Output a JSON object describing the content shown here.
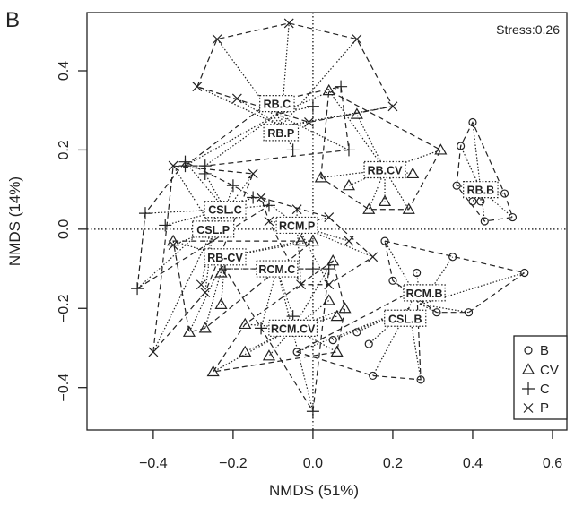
{
  "panel_label": "B",
  "chart_data": {
    "type": "scatter",
    "title": "",
    "xlabel": "NMDS (51%)",
    "ylabel": "NMDS (14%)",
    "xlim": [
      -0.566,
      0.636
    ],
    "ylim": [
      -0.507,
      0.547
    ],
    "xticks": [
      "-0.4",
      "-0.2",
      "0.0",
      "0.2",
      "0.4",
      "0.6"
    ],
    "yticks": [
      "0.4",
      "0.2",
      "0.0",
      "-0.2",
      "-0.4"
    ],
    "grid": false,
    "reference_lines": {
      "x": 0,
      "y": 0,
      "style": "dotted"
    },
    "annotation": "Stress:0.26",
    "legend": {
      "placement": "bottom-right",
      "entries": [
        {
          "label": "B",
          "marker": "circle"
        },
        {
          "label": "CV",
          "marker": "triangle"
        },
        {
          "label": "C",
          "marker": "plus"
        },
        {
          "label": "P",
          "marker": "cross"
        }
      ]
    },
    "groups": [
      {
        "label": "RB.C",
        "marker": "plus",
        "centroid": [
          -0.09,
          0.29
        ],
        "points": [
          [
            -0.11,
            0.32
          ],
          [
            -0.08,
            0.32
          ],
          [
            0.0,
            0.31
          ],
          [
            0.07,
            0.36
          ],
          [
            0.09,
            0.2
          ],
          [
            -0.05,
            0.2
          ],
          [
            -0.32,
            0.16
          ],
          [
            -0.27,
            0.16
          ]
        ]
      },
      {
        "label": "RB.P",
        "marker": "cross",
        "centroid": [
          -0.08,
          0.26
        ],
        "points": [
          [
            -0.24,
            0.48
          ],
          [
            -0.06,
            0.52
          ],
          [
            0.11,
            0.48
          ],
          [
            -0.29,
            0.36
          ],
          [
            0.2,
            0.31
          ],
          [
            -0.01,
            0.27
          ],
          [
            -0.19,
            0.33
          ]
        ]
      },
      {
        "label": "RB.CV",
        "marker": "triangle",
        "centroid": [
          0.18,
          0.15
        ],
        "points": [
          [
            0.04,
            0.35
          ],
          [
            0.11,
            0.29
          ],
          [
            0.32,
            0.2
          ],
          [
            0.25,
            0.14
          ],
          [
            0.09,
            0.11
          ],
          [
            0.02,
            0.13
          ],
          [
            0.18,
            0.07
          ],
          [
            0.14,
            0.05
          ],
          [
            0.24,
            0.05
          ]
        ]
      },
      {
        "label": "RB.B",
        "marker": "circle",
        "centroid": [
          0.42,
          0.1
        ],
        "points": [
          [
            0.4,
            0.27
          ],
          [
            0.37,
            0.21
          ],
          [
            0.36,
            0.11
          ],
          [
            0.4,
            0.07
          ],
          [
            0.42,
            0.07
          ],
          [
            0.48,
            0.09
          ],
          [
            0.43,
            0.02
          ],
          [
            0.5,
            0.03
          ]
        ]
      },
      {
        "label": "CSL.C",
        "marker": "plus",
        "centroid": [
          -0.22,
          0.05
        ],
        "points": [
          [
            -0.32,
            0.17
          ],
          [
            -0.42,
            0.04
          ],
          [
            -0.37,
            0.01
          ],
          [
            -0.27,
            0.14
          ],
          [
            -0.2,
            0.11
          ],
          [
            -0.15,
            0.08
          ],
          [
            -0.11,
            0.06
          ],
          [
            -0.44,
            -0.15
          ]
        ]
      },
      {
        "label": "CSL.P",
        "marker": "cross",
        "centroid": [
          -0.25,
          0.0
        ],
        "points": [
          [
            -0.35,
            0.16
          ],
          [
            -0.35,
            -0.04
          ],
          [
            -0.28,
            -0.14
          ],
          [
            -0.27,
            -0.16
          ],
          [
            -0.4,
            -0.31
          ],
          [
            -0.15,
            0.14
          ]
        ]
      },
      {
        "label": "RCM.P",
        "marker": "cross",
        "centroid": [
          -0.04,
          0.01
        ],
        "points": [
          [
            -0.04,
            0.05
          ],
          [
            0.04,
            0.03
          ],
          [
            0.09,
            -0.03
          ],
          [
            0.15,
            -0.07
          ],
          [
            -0.11,
            0.02
          ],
          [
            -0.13,
            0.08
          ],
          [
            -0.03,
            -0.14
          ],
          [
            0.04,
            -0.14
          ]
        ]
      },
      {
        "label": "RB-CV",
        "marker": "triangle",
        "centroid": [
          -0.22,
          -0.07
        ],
        "points": [
          [
            -0.23,
            -0.11
          ],
          [
            -0.23,
            -0.19
          ],
          [
            -0.27,
            -0.25
          ],
          [
            -0.31,
            -0.26
          ],
          [
            -0.35,
            -0.03
          ],
          [
            -0.03,
            -0.03
          ],
          [
            0.0,
            -0.03
          ]
        ]
      },
      {
        "label": "RCM.C",
        "marker": "plus",
        "centroid": [
          -0.09,
          -0.1
        ],
        "points": [
          [
            0.0,
            -0.1
          ],
          [
            0.04,
            -0.1
          ],
          [
            -0.05,
            -0.22
          ],
          [
            -0.13,
            -0.25
          ],
          [
            0.0,
            -0.46
          ],
          [
            -0.22,
            -0.1
          ]
        ]
      },
      {
        "label": "RCM.CV",
        "marker": "triangle",
        "centroid": [
          -0.05,
          -0.25
        ],
        "points": [
          [
            -0.25,
            -0.36
          ],
          [
            -0.17,
            -0.31
          ],
          [
            -0.11,
            -0.32
          ],
          [
            -0.17,
            -0.24
          ],
          [
            0.06,
            -0.31
          ],
          [
            0.04,
            -0.18
          ],
          [
            0.05,
            -0.08
          ],
          [
            0.08,
            -0.2
          ],
          [
            0.06,
            -0.22
          ]
        ]
      },
      {
        "label": "CSL.B",
        "marker": "circle",
        "centroid": [
          0.24,
          -0.2
        ],
        "points": [
          [
            0.11,
            -0.26
          ],
          [
            0.14,
            -0.29
          ],
          [
            0.15,
            -0.37
          ],
          [
            0.27,
            -0.38
          ],
          [
            -0.04,
            -0.31
          ],
          [
            0.05,
            -0.28
          ],
          [
            0.26,
            -0.15
          ]
        ]
      },
      {
        "label": "RCM.B",
        "marker": "circle",
        "centroid": [
          0.27,
          -0.19
        ],
        "points": [
          [
            0.18,
            -0.03
          ],
          [
            0.35,
            -0.07
          ],
          [
            0.26,
            -0.11
          ],
          [
            0.53,
            -0.11
          ],
          [
            0.2,
            -0.13
          ],
          [
            0.31,
            -0.15
          ],
          [
            0.31,
            -0.21
          ],
          [
            0.39,
            -0.21
          ]
        ]
      }
    ]
  }
}
